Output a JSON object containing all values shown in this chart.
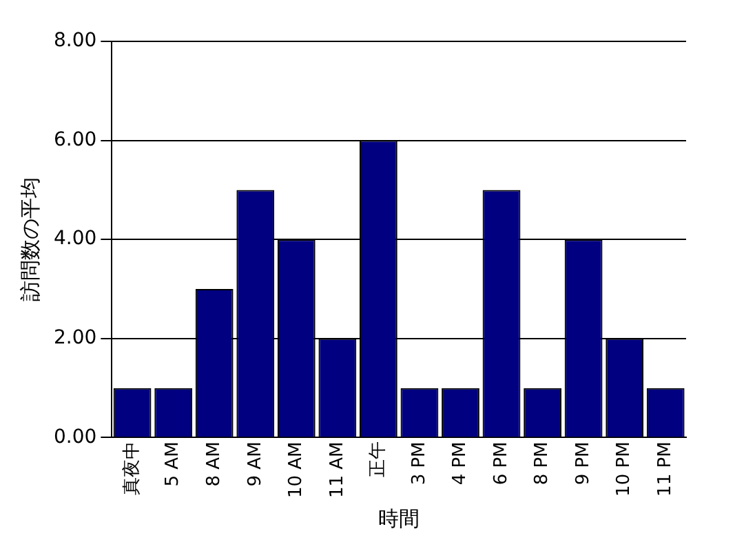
{
  "chart_data": {
    "type": "bar",
    "xlabel": "時間",
    "ylabel": "訪問数の平均",
    "categories": [
      "真夜中",
      "5 AM",
      "8 AM",
      "9 AM",
      "10 AM",
      "11 AM",
      "正午",
      "3 PM",
      "4 PM",
      "6 PM",
      "8 PM",
      "9 PM",
      "10 PM",
      "11 PM"
    ],
    "values": [
      1,
      1,
      3,
      5,
      4,
      2,
      6,
      1,
      1,
      5,
      1,
      4,
      2,
      1
    ],
    "color": "#000080",
    "ylim": [
      0,
      8
    ],
    "yticks": [
      {
        "value": 0,
        "label": "0.00"
      },
      {
        "value": 2,
        "label": "2.00"
      },
      {
        "value": 4,
        "label": "4.00"
      },
      {
        "value": 6,
        "label": "6.00"
      },
      {
        "value": 8,
        "label": "8.00"
      }
    ],
    "grid": "y"
  }
}
